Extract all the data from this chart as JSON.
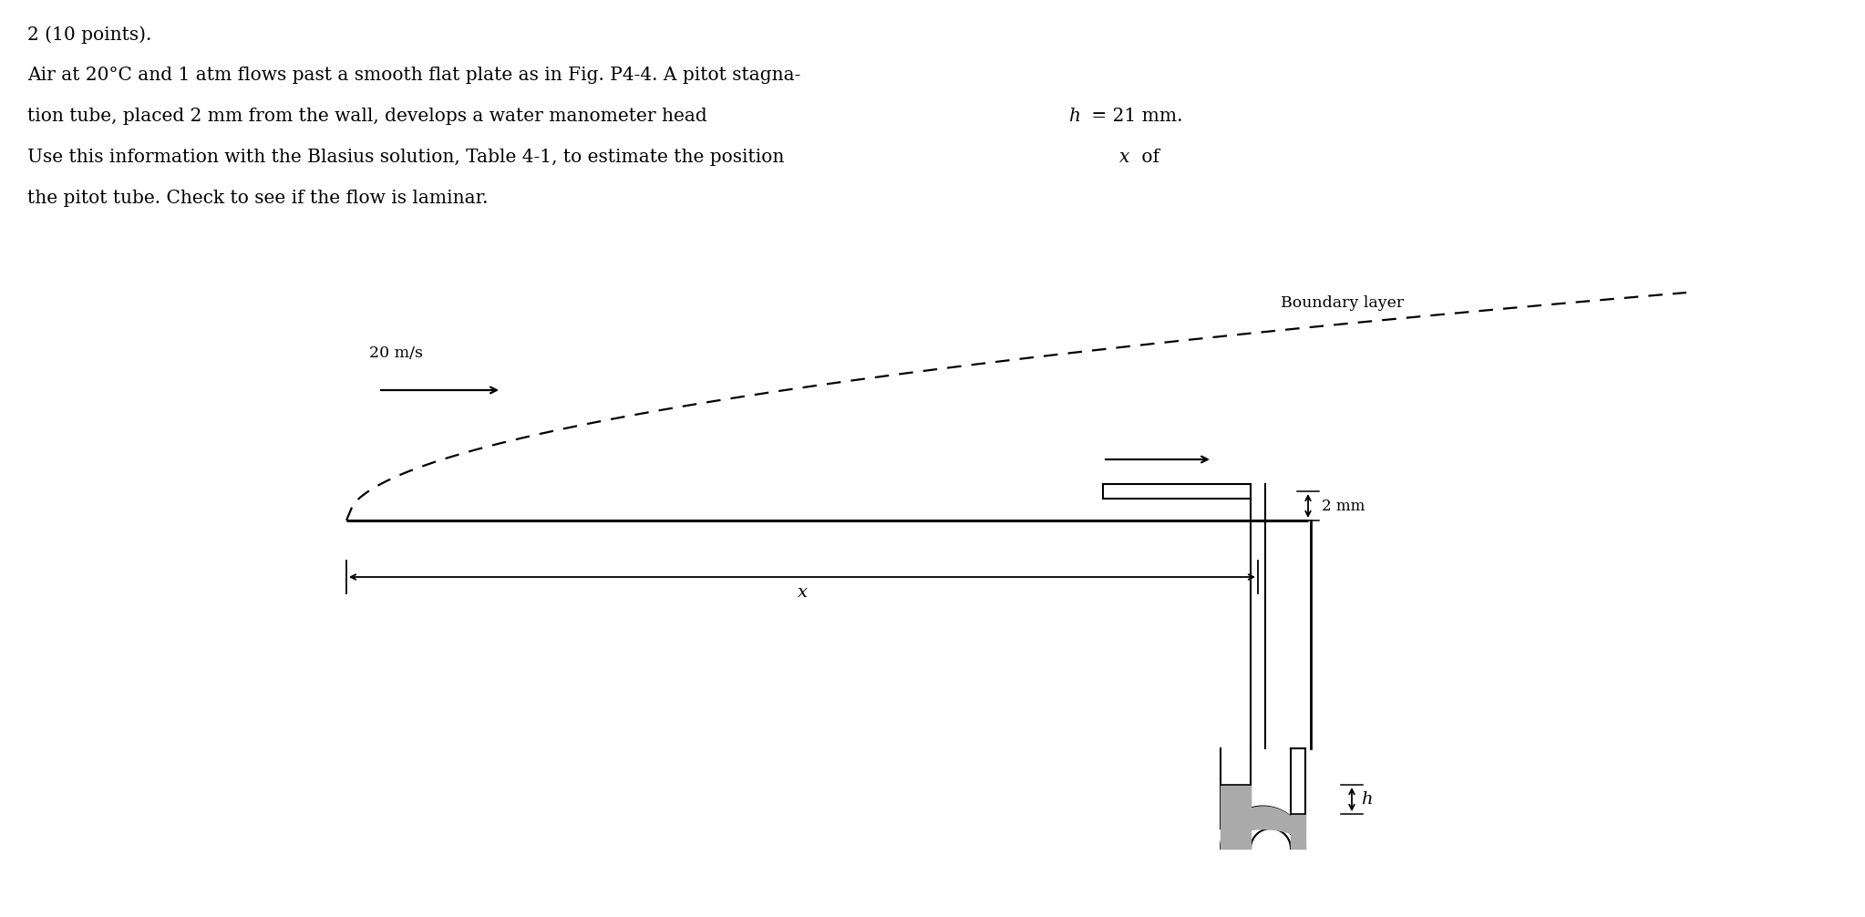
{
  "background_color": "#ffffff",
  "text_color": "#000000",
  "boundary_label": "Boundary layer",
  "velocity_label": "20 m/s",
  "distance_label": "2 mm",
  "x_label": "x",
  "h_label": "h",
  "manometer_fill": "#aaaaaa",
  "fig_bg": "#ffffff",
  "fig_width": 20.46,
  "fig_height": 10.06,
  "dpi": 100
}
